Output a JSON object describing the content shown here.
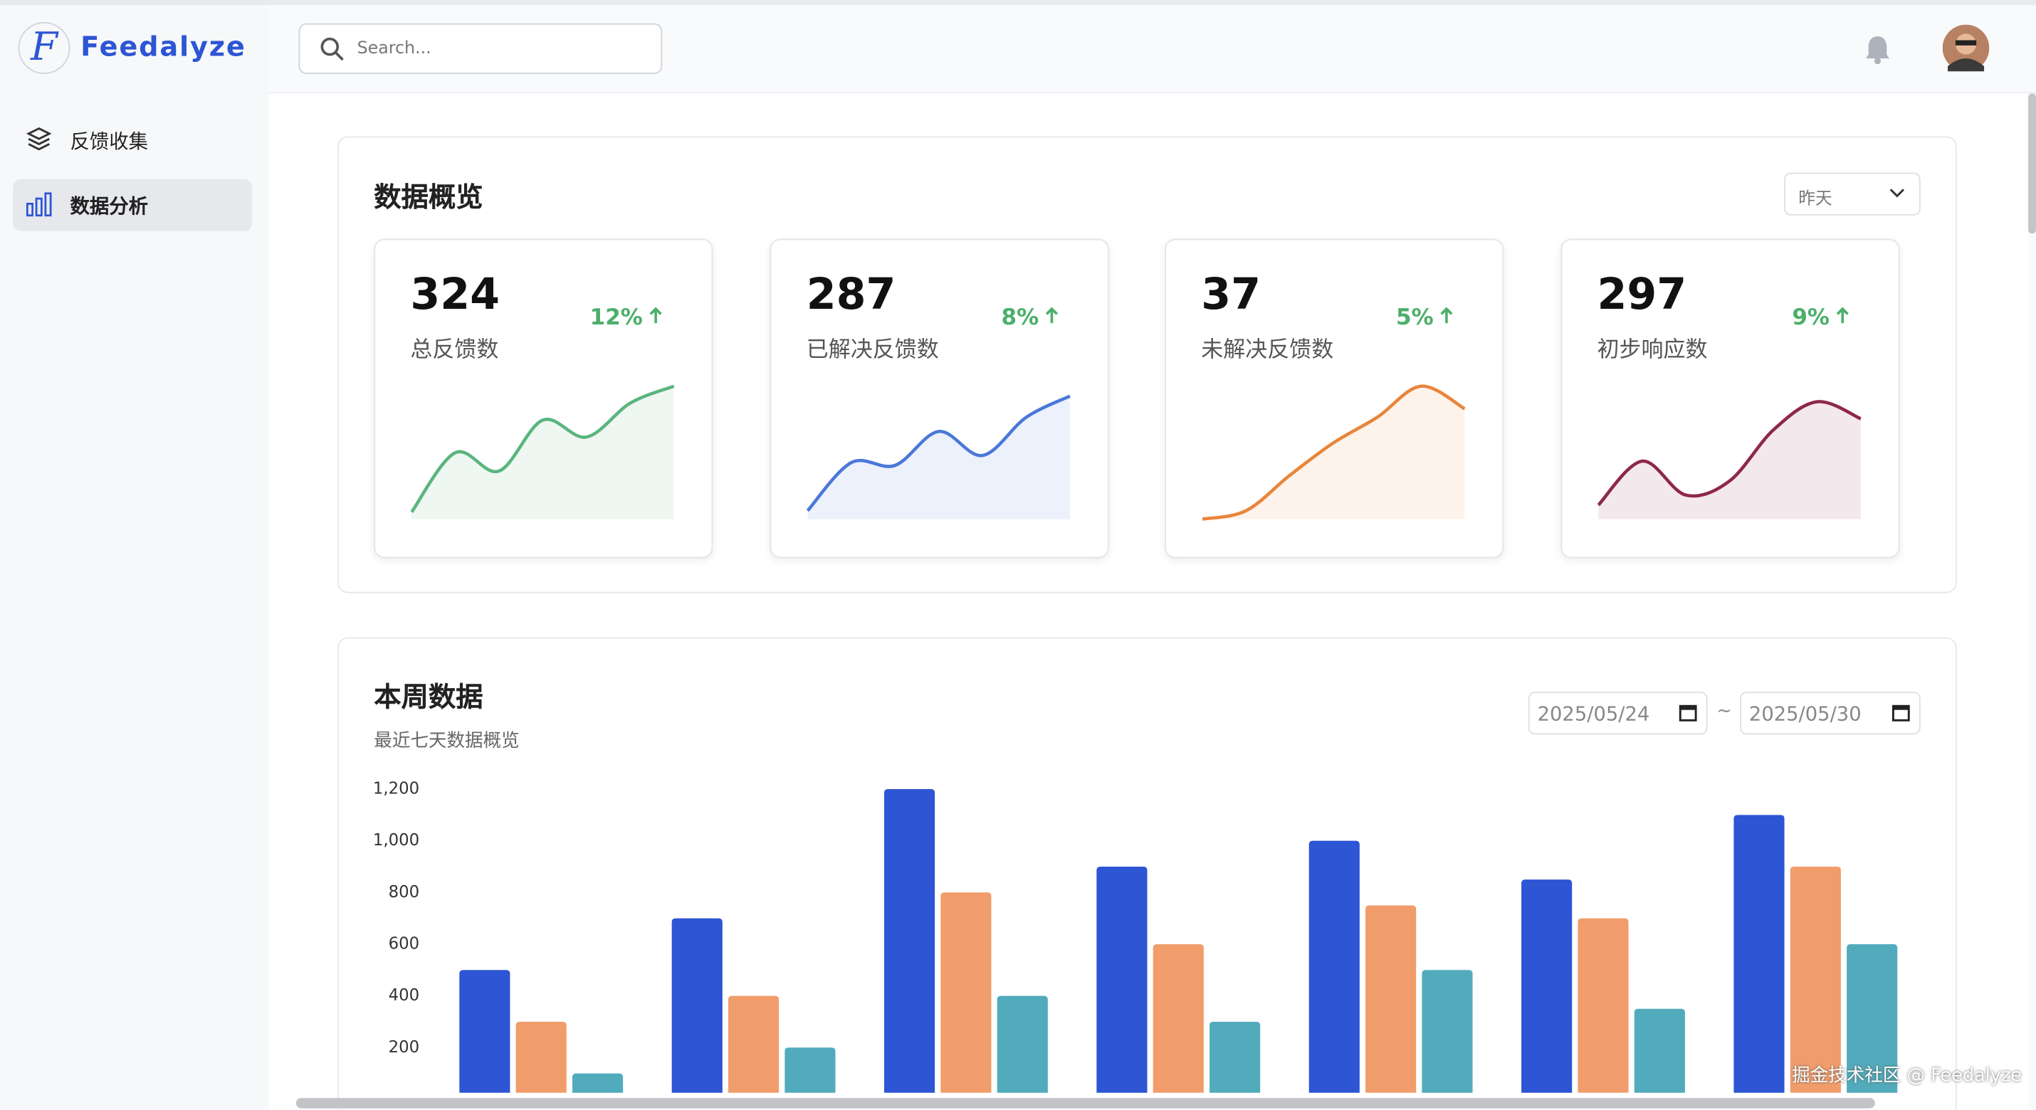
{
  "logo": {
    "letter": "F",
    "name": "Feedalyze"
  },
  "search": {
    "placeholder": "Search..."
  },
  "nav": [
    "反馈收集",
    "数据分析"
  ],
  "overview": {
    "title": "数据概览",
    "period": "昨天",
    "cards": [
      {
        "value": 324,
        "label": "总反馈数",
        "change": "12%",
        "color": "#5bb57e",
        "trend": [
          5,
          47,
          34,
          70,
          58,
          82,
          94
        ],
        "ylim": [
          0,
          100
        ]
      },
      {
        "value": 287,
        "label": "已解决反馈数",
        "change": "8%",
        "color": "#4a78d9",
        "trend": [
          6,
          40,
          38,
          62,
          45,
          72,
          87
        ],
        "ylim": [
          0,
          100
        ]
      },
      {
        "value": 37,
        "label": "未解决反馈数",
        "change": "5%",
        "color": "#e8853a",
        "trend": [
          0,
          6,
          31,
          54,
          72,
          94,
          78
        ],
        "ylim": [
          0,
          100
        ]
      },
      {
        "value": 297,
        "label": "初步响应数",
        "change": "9%",
        "color": "#8e2847",
        "trend": [
          10,
          41,
          17,
          27,
          63,
          83,
          71
        ],
        "ylim": [
          0,
          100
        ]
      }
    ]
  },
  "weekly": {
    "title": "本周数据",
    "subtitle": "最近七天数据概览",
    "start": "2025/05/24",
    "sep": "~",
    "end": "2025/05/30"
  },
  "chart_data": {
    "type": "bar",
    "categories": [
      null,
      null,
      null,
      null,
      null,
      null,
      null
    ],
    "series": [
      {
        "color": "#2d55d4",
        "values": [
          500,
          700,
          1200,
          900,
          1000,
          850,
          1100
        ]
      },
      {
        "color": "#f09d6b",
        "values": [
          300,
          400,
          800,
          600,
          750,
          700,
          900
        ]
      },
      {
        "color": "#52abbc",
        "values": [
          100,
          200,
          400,
          300,
          500,
          350,
          600
        ]
      }
    ],
    "ylim": [
      0,
      1200
    ],
    "yticks": [
      {
        "value": 200,
        "label": "200"
      },
      {
        "value": 400,
        "label": "400"
      },
      {
        "value": 600,
        "label": "600"
      },
      {
        "value": 800,
        "label": "800"
      },
      {
        "value": 1000,
        "label": "1,000"
      },
      {
        "value": 1200,
        "label": "1,200"
      }
    ]
  },
  "watermark": "掘金技术社区 @ Feedalyze"
}
